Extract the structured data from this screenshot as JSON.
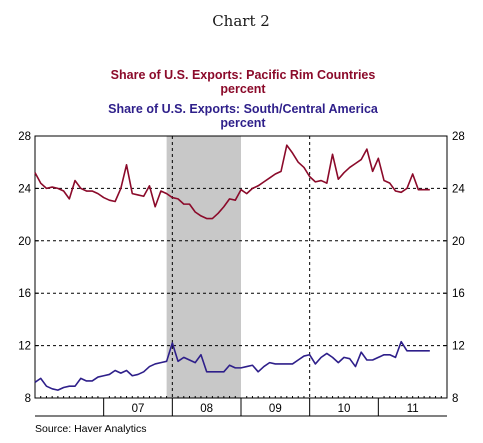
{
  "chart_data": {
    "type": "line",
    "title": "Chart 2",
    "source": "Source: Haver Analytics",
    "colors": {
      "pacific": "#8b0a2a",
      "america": "#2e1f8a",
      "recession": "#c8c8c8"
    },
    "recession": {
      "start": 2007.917,
      "end": 2009.0
    },
    "xlim": [
      2006.0,
      2012.0
    ],
    "ylim": [
      8,
      28
    ],
    "y_ticks": [
      8,
      12,
      16,
      20,
      24,
      28
    ],
    "x_labels": [
      {
        "label": "07",
        "x": 2007.5
      },
      {
        "label": "08",
        "x": 2008.5
      },
      {
        "label": "09",
        "x": 2009.5
      },
      {
        "label": "10",
        "x": 2010.5
      },
      {
        "label": "11",
        "x": 2011.5
      }
    ],
    "series": [
      {
        "name": "Share of U.S. Exports:  Pacific Rim Countries",
        "unit": "percent",
        "color": "#8b0a2a",
        "x": [
          2006.0,
          2006.083,
          2006.167,
          2006.25,
          2006.333,
          2006.417,
          2006.5,
          2006.583,
          2006.667,
          2006.75,
          2006.833,
          2006.917,
          2007.0,
          2007.083,
          2007.167,
          2007.25,
          2007.333,
          2007.417,
          2007.5,
          2007.583,
          2007.667,
          2007.75,
          2007.833,
          2007.917,
          2008.0,
          2008.083,
          2008.167,
          2008.25,
          2008.333,
          2008.417,
          2008.5,
          2008.583,
          2008.667,
          2008.75,
          2008.833,
          2008.917,
          2009.0,
          2009.083,
          2009.167,
          2009.25,
          2009.333,
          2009.417,
          2009.5,
          2009.583,
          2009.667,
          2009.75,
          2009.833,
          2009.917,
          2010.0,
          2010.083,
          2010.167,
          2010.25,
          2010.333,
          2010.417,
          2010.5,
          2010.583,
          2010.667,
          2010.75,
          2010.833,
          2010.917,
          2011.0,
          2011.083,
          2011.167,
          2011.25,
          2011.333,
          2011.417,
          2011.5,
          2011.583,
          2011.667,
          2011.75
        ],
        "y": [
          25.2,
          24.4,
          24.0,
          24.1,
          24.0,
          23.8,
          23.2,
          24.6,
          24.0,
          23.8,
          23.8,
          23.6,
          23.3,
          23.1,
          23.0,
          24.0,
          25.8,
          23.6,
          23.5,
          23.4,
          24.2,
          22.6,
          23.8,
          23.6,
          23.3,
          23.2,
          22.8,
          22.8,
          22.2,
          21.9,
          21.7,
          21.7,
          22.1,
          22.6,
          23.2,
          23.1,
          23.9,
          23.6,
          24.0,
          24.2,
          24.5,
          24.8,
          25.1,
          25.3,
          27.3,
          26.7,
          26.0,
          25.6,
          24.9,
          24.5,
          24.6,
          24.4,
          26.6,
          24.7,
          25.2,
          25.6,
          25.9,
          26.2,
          27.0,
          25.3,
          26.3,
          24.6,
          24.4,
          23.8,
          23.7,
          24.0,
          25.1,
          23.9,
          23.9,
          23.9
        ]
      },
      {
        "name": "Share of U.S. Exports:  South/Central America",
        "unit": "percent",
        "color": "#2e1f8a",
        "x": [
          2006.0,
          2006.083,
          2006.167,
          2006.25,
          2006.333,
          2006.417,
          2006.5,
          2006.583,
          2006.667,
          2006.75,
          2006.833,
          2006.917,
          2007.0,
          2007.083,
          2007.167,
          2007.25,
          2007.333,
          2007.417,
          2007.5,
          2007.583,
          2007.667,
          2007.75,
          2007.833,
          2007.917,
          2008.0,
          2008.083,
          2008.167,
          2008.25,
          2008.333,
          2008.417,
          2008.5,
          2008.583,
          2008.667,
          2008.75,
          2008.833,
          2008.917,
          2009.0,
          2009.083,
          2009.167,
          2009.25,
          2009.333,
          2009.417,
          2009.5,
          2009.583,
          2009.667,
          2009.75,
          2009.833,
          2009.917,
          2010.0,
          2010.083,
          2010.167,
          2010.25,
          2010.333,
          2010.417,
          2010.5,
          2010.583,
          2010.667,
          2010.75,
          2010.833,
          2010.917,
          2011.0,
          2011.083,
          2011.167,
          2011.25,
          2011.333,
          2011.417,
          2011.5,
          2011.583,
          2011.667,
          2011.75
        ],
        "y": [
          9.2,
          9.5,
          8.9,
          8.7,
          8.6,
          8.8,
          8.9,
          8.9,
          9.5,
          9.3,
          9.3,
          9.6,
          9.7,
          9.8,
          10.1,
          9.9,
          10.1,
          9.7,
          9.8,
          10.0,
          10.4,
          10.6,
          10.7,
          10.8,
          12.2,
          10.8,
          11.1,
          10.9,
          10.7,
          11.3,
          10.0,
          10.0,
          10.0,
          10.0,
          10.5,
          10.3,
          10.3,
          10.4,
          10.5,
          10.0,
          10.4,
          10.7,
          10.6,
          10.6,
          10.6,
          10.6,
          10.9,
          11.2,
          11.3,
          10.6,
          11.1,
          11.4,
          11.1,
          10.7,
          11.1,
          11.0,
          10.4,
          11.5,
          10.9,
          10.9,
          11.1,
          11.3,
          11.3,
          11.1,
          12.3,
          11.6,
          11.6,
          11.6,
          11.6,
          11.6
        ]
      }
    ]
  }
}
